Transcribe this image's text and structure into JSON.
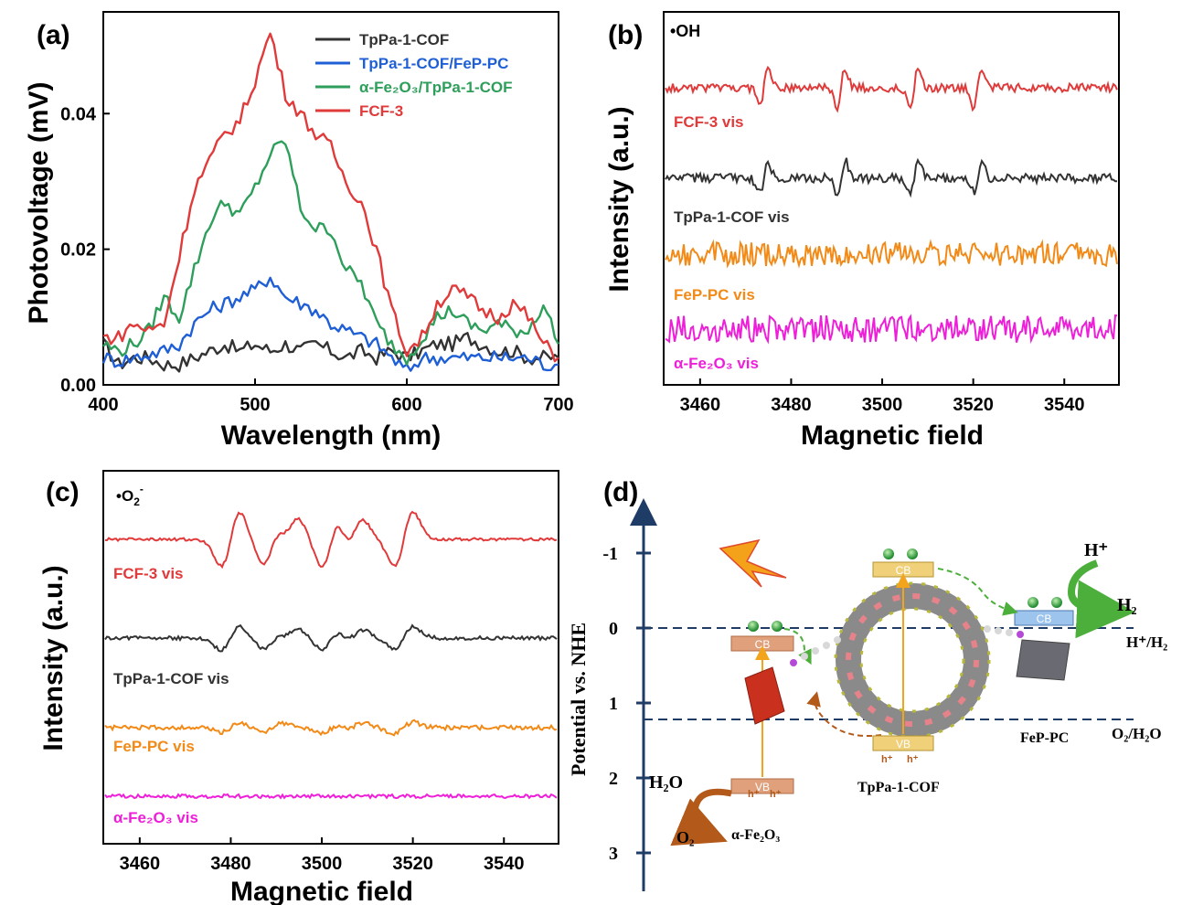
{
  "panels": {
    "a": {
      "letter": "(a)",
      "xlabel": "Wavelength (nm)",
      "ylabel": "Photovoltage (mV)",
      "xticks": [
        "400",
        "500",
        "600",
        "700"
      ],
      "yticks": [
        "0.00",
        "0.02",
        "0.04"
      ]
    },
    "b": {
      "letter": "(b)",
      "tag": "•OH",
      "xlabel": "Magnetic field",
      "ylabel": "Intensity (a.u.)",
      "xticks": [
        "3460",
        "3480",
        "3500",
        "3520",
        "3540"
      ]
    },
    "c": {
      "letter": "(c)",
      "tag_main": "•O",
      "tag_sub": "2",
      "tag_sup": "-",
      "xlabel": "Magnetic field",
      "ylabel": "Intensity (a.u.)",
      "xticks": [
        "3460",
        "3480",
        "3500",
        "3520",
        "3540"
      ]
    },
    "d": {
      "letter": "(d)",
      "yaxis_label": "Potential vs. NHE",
      "yticks": [
        "-1",
        "0",
        "1",
        "2",
        "3"
      ],
      "level_h": "H⁺/H₂",
      "level_o": "O₂/H₂O",
      "cb": "CB",
      "vb": "VB",
      "e": "e⁻",
      "h": "h⁺",
      "h_plus": "H⁺",
      "h2": "H₂",
      "h2o": "H₂O",
      "o2": "O₂",
      "fe2o3": "α-Fe₂O₃",
      "cof": "TpPa-1-COF",
      "fep": "FeP-PC"
    }
  },
  "chart_data": [
    {
      "type": "line",
      "panel": "a",
      "xlabel": "Wavelength (nm)",
      "ylabel": "Photovoltage (mV)",
      "xlim": [
        400,
        700
      ],
      "ylim": [
        0,
        0.055
      ],
      "legend_position": "top-right",
      "series": [
        {
          "name": "TpPa-1-COF",
          "color": "#333333",
          "x": [
            400,
            410,
            420,
            430,
            440,
            450,
            460,
            470,
            480,
            490,
            500,
            510,
            520,
            530,
            540,
            550,
            560,
            570,
            580,
            590,
            600,
            610,
            620,
            630,
            640,
            650,
            660,
            670,
            680,
            690,
            700
          ],
          "y": [
            0.006,
            0.003,
            0.004,
            0.004,
            0.003,
            0.003,
            0.004,
            0.005,
            0.006,
            0.005,
            0.006,
            0.005,
            0.006,
            0.005,
            0.006,
            0.005,
            0.004,
            0.005,
            0.004,
            0.005,
            0.004,
            0.005,
            0.006,
            0.006,
            0.007,
            0.006,
            0.005,
            0.005,
            0.004,
            0.004,
            0.004
          ]
        },
        {
          "name": "TpPa-1-COF/FeP-PC",
          "color": "#1f5fd6",
          "x": [
            400,
            410,
            420,
            430,
            440,
            450,
            460,
            470,
            480,
            490,
            500,
            510,
            520,
            530,
            540,
            550,
            560,
            570,
            580,
            590,
            600,
            610,
            620,
            630,
            640,
            650,
            660,
            670,
            680,
            690,
            700
          ],
          "y": [
            0.004,
            0.0035,
            0.004,
            0.0045,
            0.005,
            0.006,
            0.009,
            0.011,
            0.012,
            0.013,
            0.014,
            0.016,
            0.013,
            0.012,
            0.011,
            0.009,
            0.008,
            0.007,
            0.006,
            0.004,
            0.002,
            0.004,
            0.004,
            0.004,
            0.004,
            0.004,
            0.004,
            0.004,
            0.004,
            0.003,
            0.003
          ]
        },
        {
          "name": "α-Fe₂O₃/TpPa-1-COF",
          "color": "#2e9e5b",
          "x": [
            400,
            410,
            420,
            430,
            440,
            450,
            460,
            470,
            480,
            490,
            500,
            510,
            520,
            530,
            540,
            550,
            560,
            570,
            580,
            590,
            600,
            610,
            620,
            630,
            640,
            650,
            660,
            670,
            680,
            690,
            700
          ],
          "y": [
            0.006,
            0.005,
            0.006,
            0.008,
            0.013,
            0.01,
            0.017,
            0.024,
            0.027,
            0.025,
            0.029,
            0.034,
            0.036,
            0.026,
            0.023,
            0.023,
            0.017,
            0.015,
            0.009,
            0.006,
            0.004,
            0.007,
            0.01,
            0.011,
            0.009,
            0.008,
            0.009,
            0.008,
            0.008,
            0.012,
            0.006
          ]
        },
        {
          "name": "FCF-3",
          "color": "#e03a3a",
          "x": [
            400,
            410,
            420,
            430,
            440,
            450,
            460,
            470,
            480,
            490,
            500,
            510,
            520,
            530,
            540,
            550,
            560,
            570,
            580,
            590,
            600,
            610,
            620,
            630,
            640,
            650,
            660,
            670,
            680,
            690,
            700
          ],
          "y": [
            0.007,
            0.007,
            0.009,
            0.008,
            0.009,
            0.019,
            0.029,
            0.033,
            0.037,
            0.039,
            0.045,
            0.052,
            0.043,
            0.04,
            0.037,
            0.035,
            0.03,
            0.027,
            0.02,
            0.011,
            0.005,
            0.007,
            0.012,
            0.014,
            0.013,
            0.011,
            0.01,
            0.012,
            0.01,
            0.006,
            0.004
          ]
        }
      ]
    },
    {
      "type": "line",
      "panel": "b",
      "title": "•OH",
      "xlabel": "Magnetic field",
      "ylabel": "Intensity (a.u.)",
      "xlim": [
        3452,
        3552
      ],
      "series": [
        {
          "name": "FCF-3 vis",
          "color": "#e03a3a",
          "x": [
            3474,
            3491,
            3507,
            3521
          ],
          "y": [
            1,
            1,
            1,
            1
          ]
        },
        {
          "name": "TpPa-1-COF vis",
          "color": "#333333",
          "x": [
            3474,
            3491,
            3507,
            3521
          ],
          "y": [
            0.8,
            1,
            1,
            0.8
          ]
        },
        {
          "name": "FeP-PC vis",
          "color": "#f28a18",
          "x": [],
          "y": []
        },
        {
          "name": "α-Fe₂O₃ vis",
          "color": "#ee1fd8",
          "x": [],
          "y": []
        }
      ]
    },
    {
      "type": "line",
      "panel": "c",
      "xlabel": "Magnetic field",
      "ylabel": "Intensity (a.u.)",
      "xlim": [
        3452,
        3552
      ],
      "series": [
        {
          "name": "FCF-3 vis",
          "color": "#e03a3a",
          "x": [
            3480,
            3489,
            3493,
            3502,
            3507,
            3518
          ],
          "y": [
            1,
            0.9,
            0.7,
            1,
            0.7,
            1
          ]
        },
        {
          "name": "TpPa-1-COF vis",
          "color": "#333333",
          "x": [
            3480,
            3489,
            3493,
            3502,
            3507,
            3518
          ],
          "y": [
            0.6,
            0.5,
            0.4,
            0.55,
            0.4,
            0.6
          ]
        },
        {
          "name": "FeP-PC vis",
          "color": "#f28a18",
          "x": [
            3480,
            3489,
            3502,
            3507,
            3518
          ],
          "y": [
            0.3,
            0.3,
            0.35,
            0.3,
            0.35
          ]
        },
        {
          "name": "α-Fe₂O₃ vis",
          "color": "#ee1fd8",
          "x": [],
          "y": []
        }
      ]
    }
  ]
}
